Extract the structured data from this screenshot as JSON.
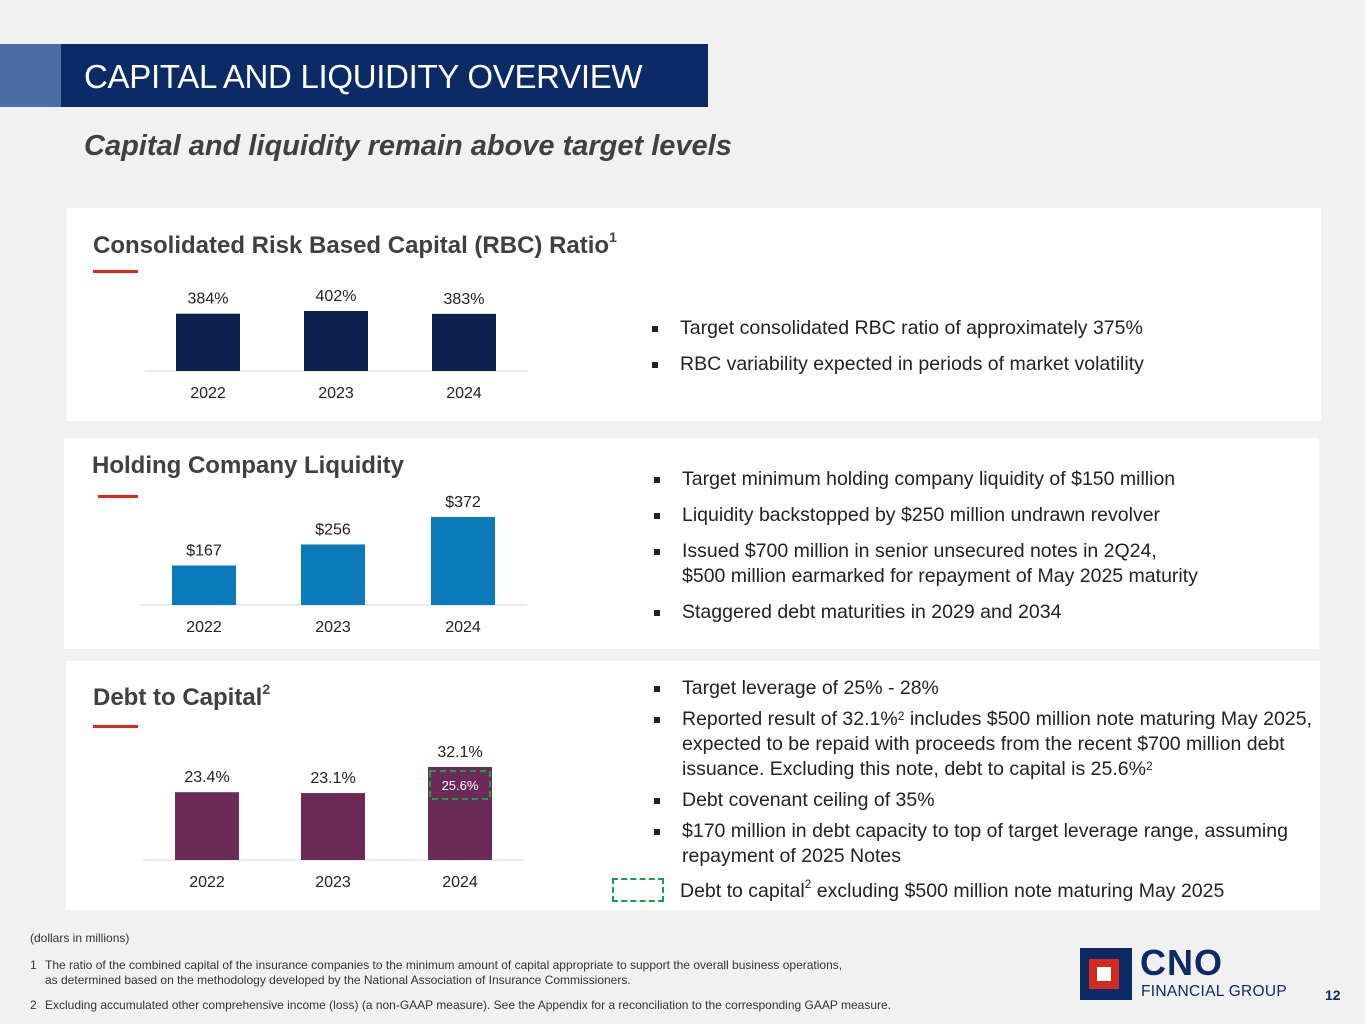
{
  "header": {
    "title": "CAPITAL AND LIQUIDITY OVERVIEW",
    "subtitle": "Capital and liquidity remain above target levels"
  },
  "colors": {
    "title_bar": "#0c2a66",
    "title_accent": "#4a6fa5",
    "rbc_bar": "#0c2150",
    "liquidity_bar": "#0a7ab8",
    "debt_bar": "#6b2a57",
    "highlight_dashed": "#1a9f4e",
    "rule_red": "#d52b1e"
  },
  "panels": {
    "rbc": {
      "title": "Consolidated Risk Based Capital (RBC) Ratio",
      "title_sup": "1",
      "bullets": [
        "Target consolidated RBC ratio of approximately 375%",
        "RBC variability expected in periods of market volatility"
      ]
    },
    "liquidity": {
      "title": "Holding Company Liquidity",
      "bullets": [
        "Target minimum holding company liquidity of $150 million",
        "Liquidity backstopped by $250 million undrawn revolver",
        "Issued $700 million in senior unsecured notes in 2Q24,",
        "$500 million earmarked for repayment of May 2025 maturity",
        "Staggered debt maturities in 2029 and 2034"
      ]
    },
    "debt": {
      "title": "Debt to Capital",
      "title_sup": "2",
      "bullets": [
        "Target leverage of 25% - 28%",
        "Reported result of 32.1%",
        "2",
        " includes $500 million note maturing May 2025, expected to be repaid with proceeds from the recent $700 million debt issuance.  Excluding this note, debt to capital is 25.6%",
        "2",
        "Debt covenant ceiling of 35%",
        "$170 million in debt capacity to top of target leverage range, assuming repayment of 2025 Notes"
      ],
      "legend": {
        "label_prefix": "Debt to capital",
        "label_sup": "2",
        "label_suffix": " excluding $500 million note maturing May 2025"
      }
    }
  },
  "chart_data": [
    {
      "id": "rbc",
      "type": "bar",
      "title": "Consolidated Risk Based Capital (RBC) Ratio",
      "categories": [
        "2022",
        "2023",
        "2024"
      ],
      "values": [
        384,
        402,
        383
      ],
      "labels": [
        "384%",
        "402%",
        "383%"
      ],
      "unit": "%",
      "ylim": [
        0,
        402
      ]
    },
    {
      "id": "liquidity",
      "type": "bar",
      "title": "Holding Company Liquidity",
      "categories": [
        "2022",
        "2023",
        "2024"
      ],
      "values": [
        167,
        256,
        372
      ],
      "labels": [
        "$167",
        "$256",
        "$372"
      ],
      "unit": "$ millions",
      "ylim": [
        0,
        372
      ]
    },
    {
      "id": "debt",
      "type": "bar",
      "title": "Debt to Capital",
      "categories": [
        "2022",
        "2023",
        "2024"
      ],
      "values": [
        23.4,
        23.1,
        32.1
      ],
      "labels": [
        "23.4%",
        "23.1%",
        "32.1%"
      ],
      "unit": "%",
      "ylim": [
        0,
        32.1
      ],
      "highlight": {
        "category": "2024",
        "value": 25.6,
        "label": "25.6%",
        "note": "Debt to capital excluding $500 million note maturing May 2025"
      }
    }
  ],
  "footer": {
    "units_note": "(dollars in millions)",
    "footnotes": [
      {
        "num": "1",
        "lines": [
          "The ratio of the combined capital of the insurance companies to the minimum amount of capital appropriate to support the overall business operations,",
          "as determined based on the methodology developed by the National Association of Insurance Commissioners."
        ]
      },
      {
        "num": "2",
        "lines": [
          "Excluding accumulated other comprehensive income (loss) (a non-GAAP measure). See the Appendix for a reconciliation to the corresponding GAAP measure."
        ]
      }
    ]
  },
  "logo": {
    "name": "CNO",
    "subtitle": "FINANCIAL GROUP"
  },
  "page_number": "12"
}
